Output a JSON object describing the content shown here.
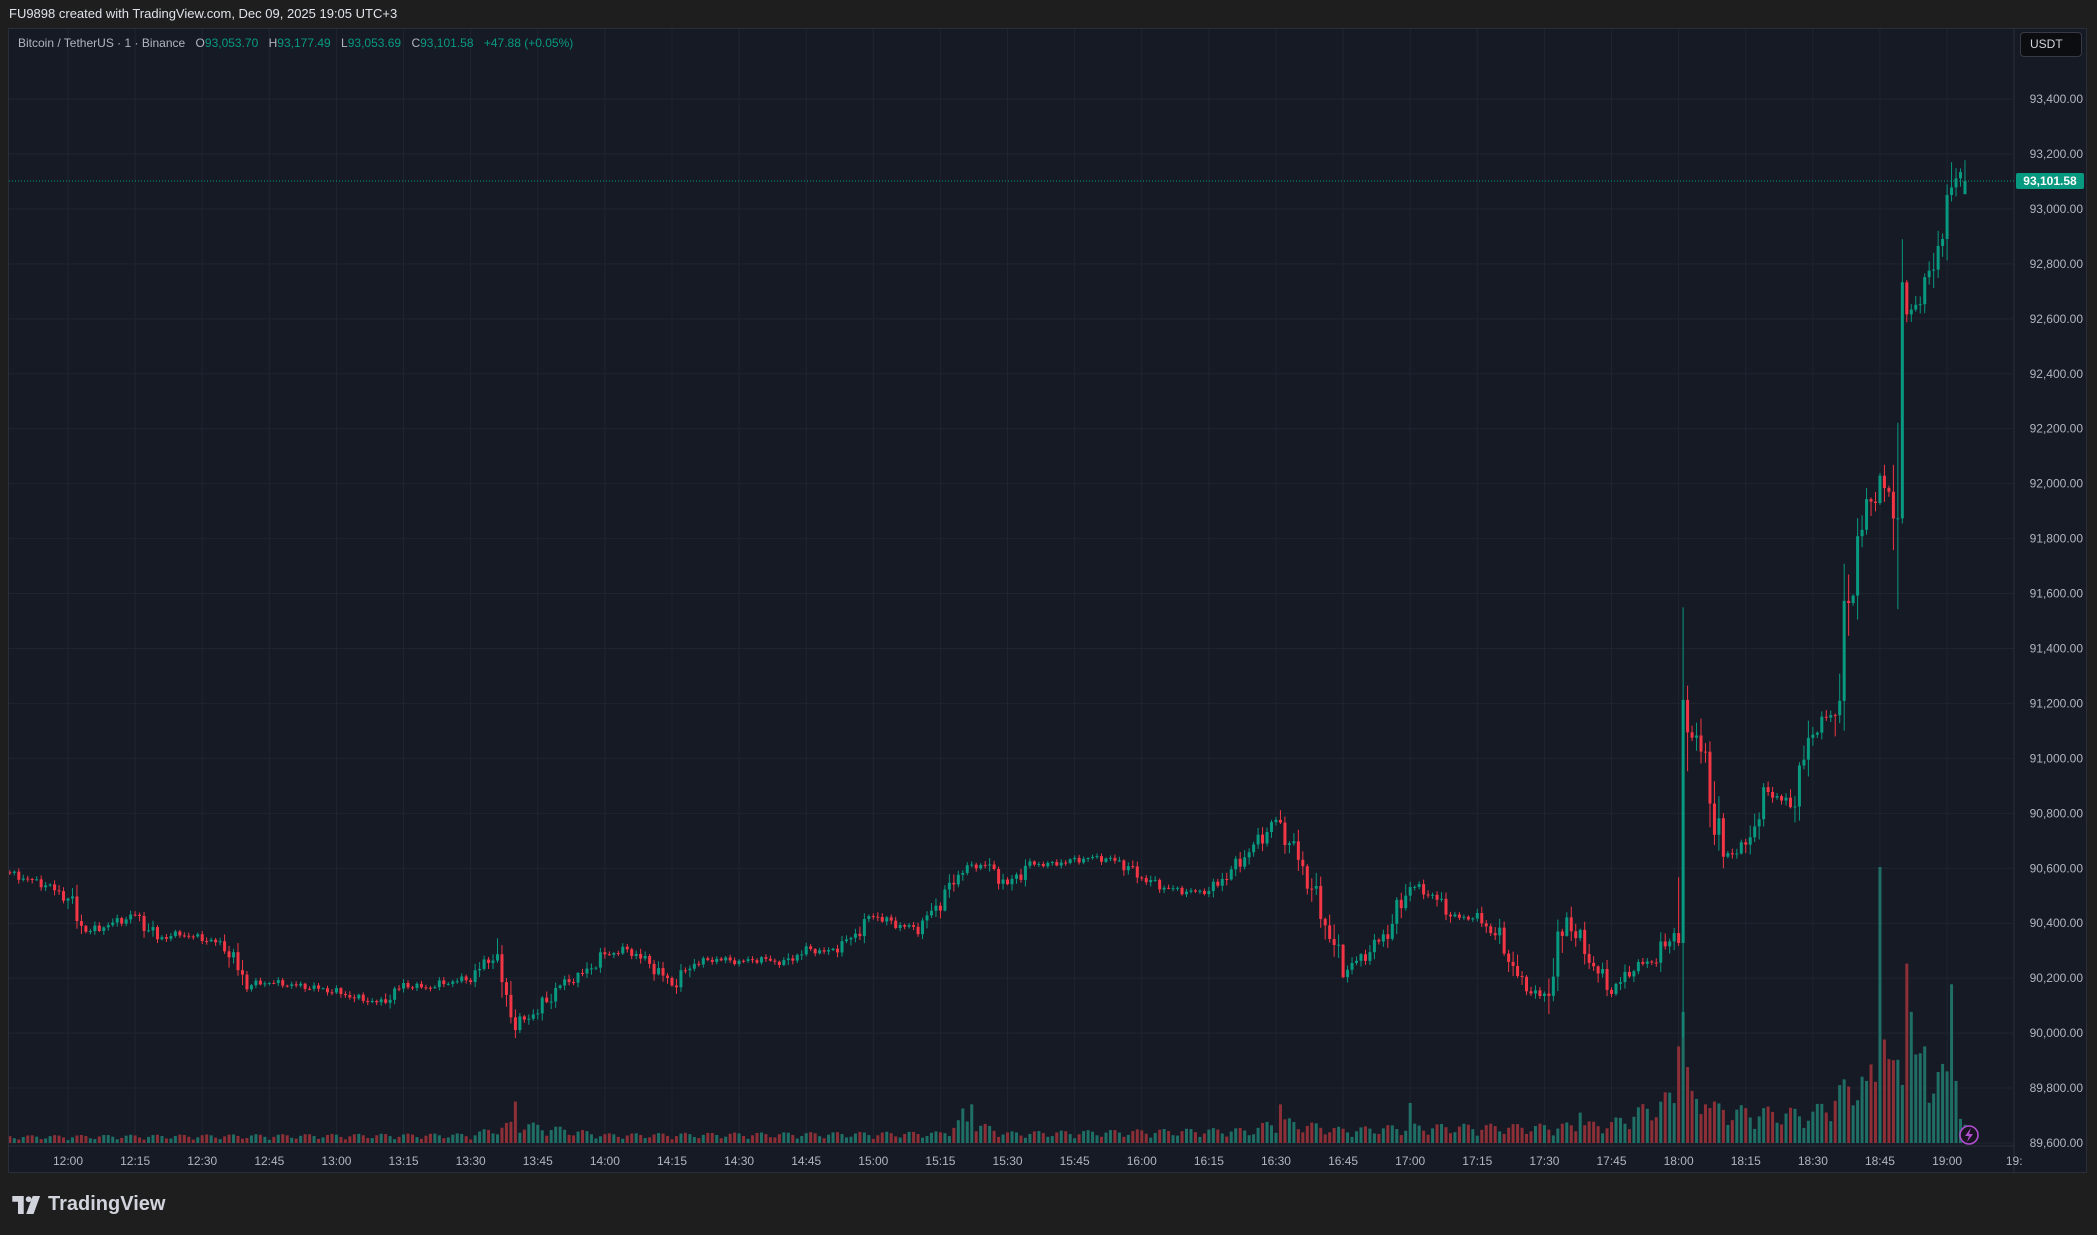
{
  "caption": "FU9898 created with TradingView.com, Dec 09, 2025 19:05 UTC+3",
  "legend": {
    "symbol": "Bitcoin / TetherUS · 1 · Binance",
    "o_label": "O",
    "o": "93,053.70",
    "h_label": "H",
    "h": "93,177.49",
    "l_label": "L",
    "l": "93,053.69",
    "c_label": "C",
    "c": "93,101.58",
    "change": "+47.88 (+0.05%)"
  },
  "currency_button": "USDT",
  "last_price_label": "93,101.58",
  "brand": "TradingView",
  "colors": {
    "up": "#089981",
    "down": "#f23645",
    "up_volume": "#1f6f66",
    "down_volume": "#8c2f36",
    "panel": "#161a25",
    "grid": "#1f2430",
    "alert": "#b04fcf"
  },
  "chart_data": {
    "type": "candlestick",
    "title": "Bitcoin / TetherUS · 1 · Binance",
    "interval_minutes": 1,
    "ylim": [
      89589,
      93655
    ],
    "y_ticks": [
      89600,
      89800,
      90000,
      90200,
      90400,
      90600,
      90800,
      91000,
      91200,
      91400,
      91600,
      91800,
      92000,
      92200,
      92400,
      92600,
      92800,
      93000,
      93200,
      93400
    ],
    "y_tick_labels": [
      "89,600.00",
      "89,800.00",
      "90,000.00",
      "90,200.00",
      "90,400.00",
      "90,600.00",
      "90,800.00",
      "91,000.00",
      "91,200.00",
      "91,400.00",
      "91,600.00",
      "91,800.00",
      "92,000.00",
      "92,200.00",
      "92,400.00",
      "92,600.00",
      "92,800.00",
      "93,000.00",
      "93,200.00",
      "93,400.00"
    ],
    "x_tick_labels": [
      "12:00",
      "12:15",
      "12:30",
      "12:45",
      "13:00",
      "13:15",
      "13:30",
      "13:45",
      "14:00",
      "14:15",
      "14:30",
      "14:45",
      "15:00",
      "15:15",
      "15:30",
      "15:45",
      "16:00",
      "16:15",
      "16:30",
      "16:45",
      "17:00",
      "17:15",
      "17:30",
      "17:45",
      "18:00",
      "18:15",
      "18:30",
      "18:45",
      "19:00",
      "19:"
    ],
    "grid": true,
    "last_price": 93101.58,
    "close_waypoints": [
      [
        "11:47",
        90580
      ],
      [
        "11:50",
        90565
      ],
      [
        "11:55",
        90540
      ],
      [
        "12:00",
        90490
      ],
      [
        "12:03",
        90390
      ],
      [
        "12:05",
        90370
      ],
      [
        "12:10",
        90400
      ],
      [
        "12:15",
        90430
      ],
      [
        "12:20",
        90345
      ],
      [
        "12:25",
        90360
      ],
      [
        "12:30",
        90345
      ],
      [
        "12:35",
        90320
      ],
      [
        "12:40",
        90175
      ],
      [
        "12:45",
        90185
      ],
      [
        "12:50",
        90175
      ],
      [
        "12:55",
        90165
      ],
      [
        "13:00",
        90150
      ],
      [
        "13:05",
        90125
      ],
      [
        "13:10",
        90110
      ],
      [
        "13:15",
        90175
      ],
      [
        "13:20",
        90165
      ],
      [
        "13:25",
        90185
      ],
      [
        "13:30",
        90200
      ],
      [
        "13:35",
        90285
      ],
      [
        "13:40",
        90030
      ],
      [
        "13:45",
        90080
      ],
      [
        "13:50",
        90175
      ],
      [
        "13:55",
        90215
      ],
      [
        "14:00",
        90285
      ],
      [
        "14:05",
        90305
      ],
      [
        "14:10",
        90255
      ],
      [
        "14:15",
        90175
      ],
      [
        "14:20",
        90255
      ],
      [
        "14:25",
        90270
      ],
      [
        "14:30",
        90260
      ],
      [
        "14:35",
        90270
      ],
      [
        "14:40",
        90255
      ],
      [
        "14:45",
        90305
      ],
      [
        "14:50",
        90295
      ],
      [
        "14:55",
        90345
      ],
      [
        "15:00",
        90430
      ],
      [
        "15:05",
        90395
      ],
      [
        "15:10",
        90380
      ],
      [
        "15:15",
        90480
      ],
      [
        "15:20",
        90600
      ],
      [
        "15:25",
        90615
      ],
      [
        "15:30",
        90540
      ],
      [
        "15:35",
        90615
      ],
      [
        "15:40",
        90615
      ],
      [
        "15:45",
        90630
      ],
      [
        "15:50",
        90640
      ],
      [
        "15:55",
        90625
      ],
      [
        "16:00",
        90565
      ],
      [
        "16:05",
        90530
      ],
      [
        "16:10",
        90515
      ],
      [
        "16:15",
        90515
      ],
      [
        "16:20",
        90590
      ],
      [
        "16:25",
        90680
      ],
      [
        "16:30",
        90775
      ],
      [
        "16:35",
        90640
      ],
      [
        "16:40",
        90445
      ],
      [
        "16:45",
        90225
      ],
      [
        "16:50",
        90285
      ],
      [
        "16:55",
        90370
      ],
      [
        "17:00",
        90540
      ],
      [
        "17:05",
        90500
      ],
      [
        "17:10",
        90420
      ],
      [
        "17:15",
        90420
      ],
      [
        "17:20",
        90345
      ],
      [
        "17:25",
        90175
      ],
      [
        "17:30",
        90125
      ],
      [
        "17:35",
        90420
      ],
      [
        "17:40",
        90270
      ],
      [
        "17:45",
        90150
      ],
      [
        "17:50",
        90240
      ],
      [
        "17:55",
        90270
      ],
      [
        "18:00",
        90395
      ],
      [
        "18:02",
        91150
      ],
      [
        "18:05",
        91030
      ],
      [
        "18:10",
        90640
      ],
      [
        "18:15",
        90685
      ],
      [
        "18:20",
        90880
      ],
      [
        "18:25",
        90830
      ],
      [
        "18:30",
        91100
      ],
      [
        "18:35",
        91175
      ],
      [
        "18:40",
        91805
      ],
      [
        "18:45",
        92025
      ],
      [
        "18:48",
        91900
      ],
      [
        "18:50",
        92585
      ],
      [
        "18:55",
        92705
      ],
      [
        "19:00",
        92975
      ],
      [
        "19:02",
        93150
      ],
      [
        "19:04",
        93101.58
      ]
    ],
    "last_candle": {
      "open": 93053.7,
      "high": 93177.49,
      "low": 93053.69,
      "close": 93101.58
    },
    "volume_levels": [
      [
        "11:47",
        4
      ],
      [
        "13:30",
        5
      ],
      [
        "13:40",
        12
      ],
      [
        "14:00",
        5
      ],
      [
        "15:15",
        6
      ],
      [
        "15:20",
        14
      ],
      [
        "15:30",
        6
      ],
      [
        "16:25",
        8
      ],
      [
        "16:30",
        14
      ],
      [
        "16:45",
        8
      ],
      [
        "17:00",
        10
      ],
      [
        "17:30",
        10
      ],
      [
        "17:45",
        12
      ],
      [
        "18:00",
        30
      ],
      [
        "18:10",
        20
      ],
      [
        "18:30",
        18
      ],
      [
        "18:40",
        40
      ],
      [
        "18:50",
        50
      ],
      [
        "19:00",
        40
      ],
      [
        "19:04",
        10
      ]
    ],
    "volume_spikes": [
      [
        "13:40",
        30
      ],
      [
        "15:20",
        25
      ],
      [
        "15:22",
        28
      ],
      [
        "16:31",
        28
      ],
      [
        "17:00",
        29
      ],
      [
        "17:38",
        22
      ],
      [
        "18:00",
        70
      ],
      [
        "18:01",
        95
      ],
      [
        "18:02",
        55
      ],
      [
        "18:06",
        28
      ],
      [
        "18:10",
        24
      ],
      [
        "18:41",
        48
      ],
      [
        "18:42",
        45
      ],
      [
        "18:45",
        200
      ],
      [
        "18:46",
        75
      ],
      [
        "18:48",
        60
      ],
      [
        "18:51",
        130
      ],
      [
        "18:52",
        95
      ],
      [
        "18:54",
        65
      ],
      [
        "18:55",
        70
      ],
      [
        "19:01",
        115
      ],
      [
        "19:02",
        45
      ]
    ],
    "volume_scale_max": 200
  }
}
